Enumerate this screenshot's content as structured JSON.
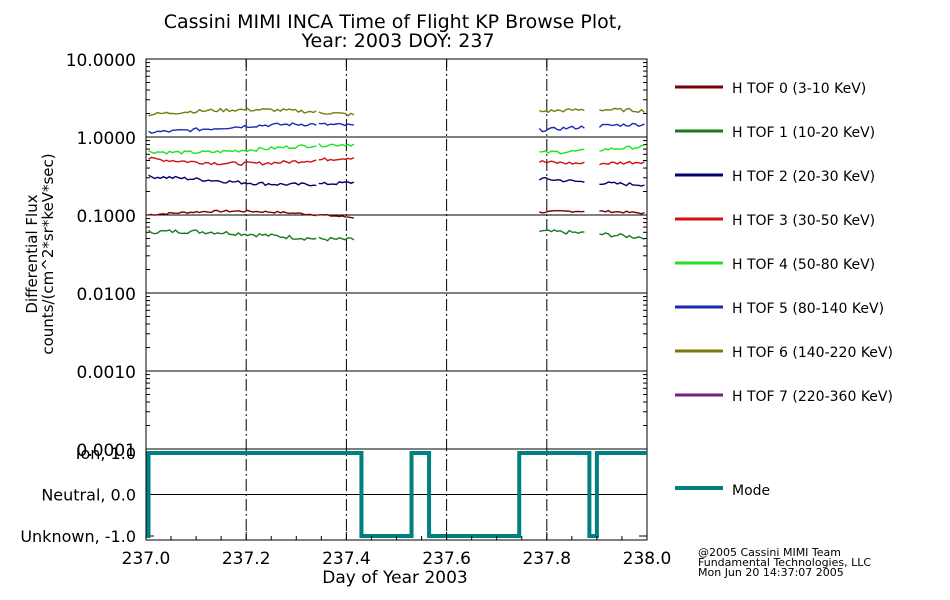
{
  "chart_data": {
    "type": "line",
    "title_line1": "Cassini MIMI INCA Time of Flight KP Browse Plot,",
    "title_line2": "Year: 2003 DOY: 237",
    "ylabel_line1": "Differential Flux",
    "ylabel_line2": "counts/(cm^2*sr*keV*sec)",
    "xlabel": "Day of Year 2003",
    "xlim": [
      237.0,
      238.0
    ],
    "ylim": [
      0.0001,
      10.0
    ],
    "yscale": "log",
    "x_ticks": [
      "237.0",
      "237.2",
      "237.4",
      "237.6",
      "237.8",
      "238.0"
    ],
    "x_tick_values": [
      237.0,
      237.2,
      237.4,
      237.6,
      237.8,
      238.0
    ],
    "y_ticks": [
      "10.0000",
      "1.0000",
      "0.1000",
      "0.0100",
      "0.0010",
      "0.0001"
    ],
    "y_tick_values": [
      10,
      1,
      0.1,
      0.01,
      0.001,
      0.0001
    ],
    "vertical_dashed_lines": [
      237.2,
      237.4,
      237.6,
      237.8
    ],
    "data_gap": [
      237.42,
      237.78
    ],
    "series": [
      {
        "name": "H TOF 0 (3-10 KeV)",
        "color": "#7a0000",
        "level": 0.1,
        "noise": 0.03,
        "visible": true
      },
      {
        "name": "H TOF 1 (10-20 KeV)",
        "color": "#1a7a1a",
        "level": 0.055,
        "noise": 0.06,
        "visible": true
      },
      {
        "name": "H TOF 2 (20-30 KeV)",
        "color": "#00006e",
        "level": 0.28,
        "noise": 0.05,
        "visible": true
      },
      {
        "name": "H TOF 3 (30-50 KeV)",
        "color": "#d01010",
        "level": 0.52,
        "noise": 0.05,
        "visible": true
      },
      {
        "name": "H TOF 4 (50-80 KeV)",
        "color": "#22e022",
        "level": 0.72,
        "noise": 0.05,
        "visible": true
      },
      {
        "name": "H TOF 5 (80-140 KeV)",
        "color": "#1a2ab0",
        "level": 1.3,
        "noise": 0.05,
        "visible": true
      },
      {
        "name": "H TOF 6 (140-220 KeV)",
        "color": "#7a7a10",
        "level": 2.0,
        "noise": 0.05,
        "visible": true
      },
      {
        "name": "H TOF 7 (220-360 KeV)",
        "color": "#7a1a8a",
        "level": 0.0001,
        "noise": 0,
        "visible": false
      }
    ],
    "mode_panel": {
      "y_ticks": [
        "Ion, 1.0",
        "Neutral, 0.0",
        "Unknown, -1.0"
      ],
      "y_tick_values": [
        1,
        0,
        -1
      ],
      "ylim": [
        -1,
        1
      ],
      "legend_label": "Mode",
      "color": "#008080",
      "steps": [
        {
          "x": 237.0,
          "y": -1
        },
        {
          "x": 237.005,
          "y": 1
        },
        {
          "x": 237.43,
          "y": -1
        },
        {
          "x": 237.53,
          "y": 1
        },
        {
          "x": 237.565,
          "y": -1
        },
        {
          "x": 237.745,
          "y": 1
        },
        {
          "x": 237.885,
          "y": -1
        },
        {
          "x": 237.9,
          "y": 1
        },
        {
          "x": 238.0,
          "y": 1
        }
      ]
    }
  },
  "credits": {
    "line1": "@2005 Cassini MIMI Team",
    "line2": "Fundamental Technologies, LLC",
    "line3": "Mon Jun 20 14:37:07 2005"
  }
}
